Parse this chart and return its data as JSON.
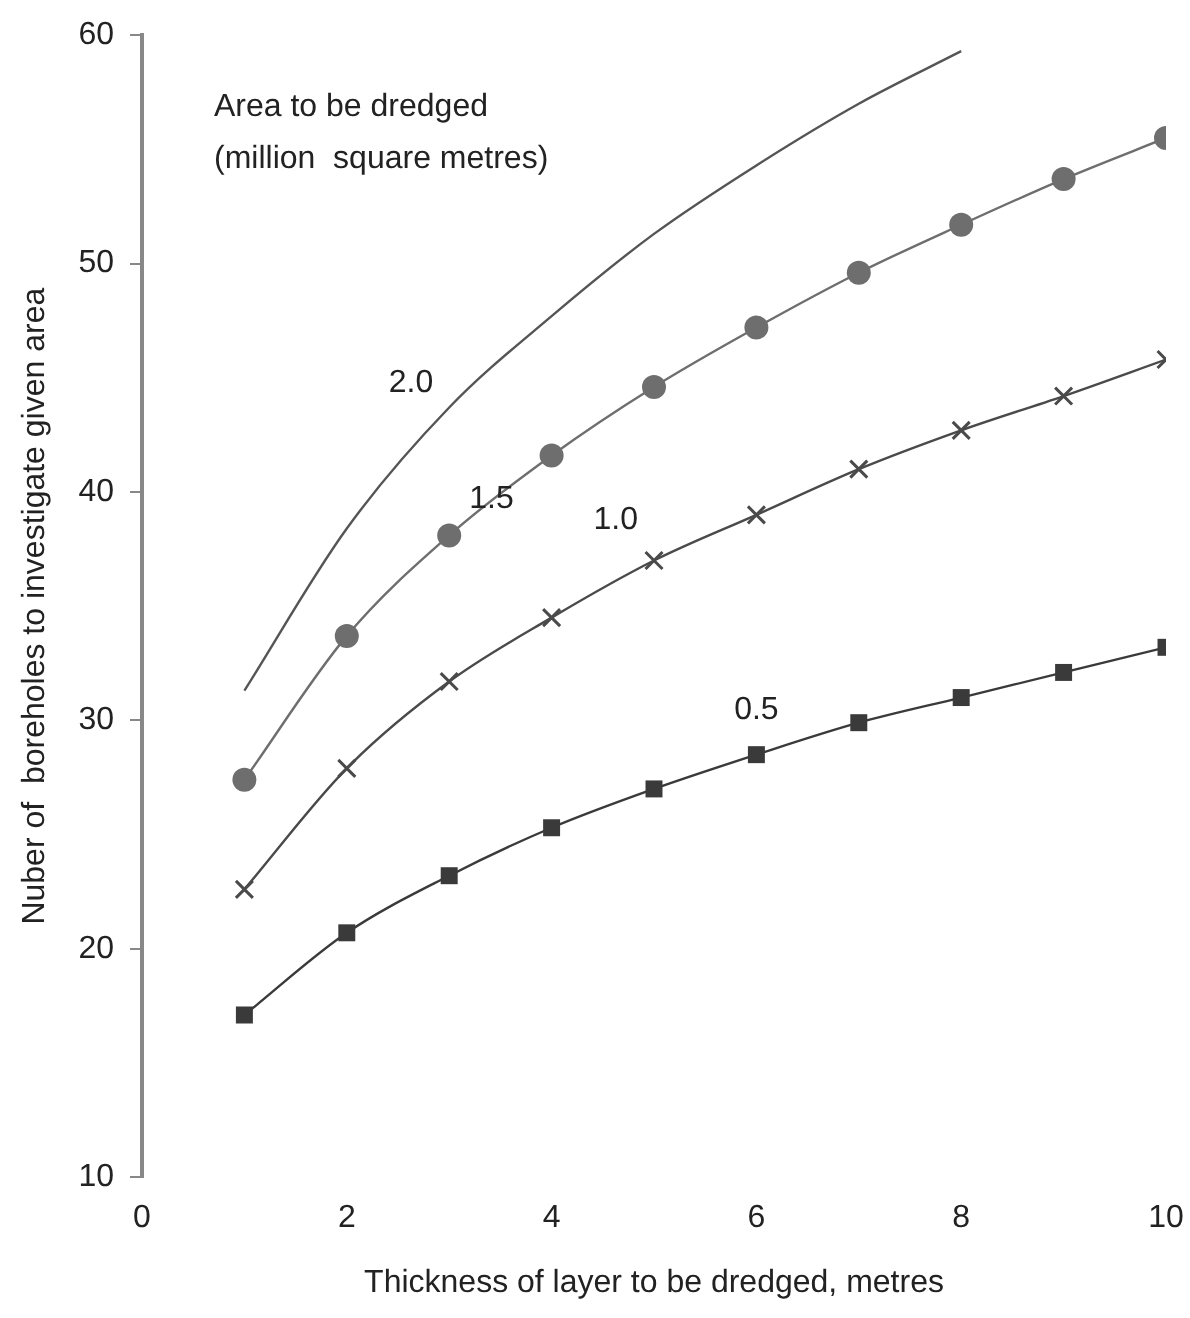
{
  "chart_data": {
    "type": "line",
    "xlabel": "Thickness of layer to be dredged, metres",
    "ylabel": "Nuber of  boreholes to investigate given area",
    "legend_title": "Area to be dredged\n(million  square metres)",
    "x": [
      1,
      2,
      3,
      4,
      5,
      6,
      7,
      8,
      9,
      10
    ],
    "xlim": [
      0,
      10
    ],
    "xticks": [
      0,
      2,
      4,
      6,
      8,
      10
    ],
    "ylim": [
      10,
      60
    ],
    "yticks": [
      10,
      20,
      30,
      40,
      50,
      60
    ],
    "grid": false,
    "legend": false,
    "series": [
      {
        "name": "0.5",
        "color": "#3a3a3a",
        "marker": "square",
        "values": [
          17.1,
          20.7,
          23.2,
          25.3,
          27.0,
          28.5,
          29.9,
          31.0,
          32.1,
          33.2
        ]
      },
      {
        "name": "1.0",
        "color": "#4a4a4a",
        "marker": "cross",
        "values": [
          22.6,
          27.9,
          31.7,
          34.5,
          37.0,
          39.0,
          41.0,
          42.7,
          44.2,
          45.8
        ]
      },
      {
        "name": "1.5",
        "color": "#6e6e6e",
        "marker": "circle",
        "values": [
          27.4,
          33.7,
          38.1,
          41.6,
          44.6,
          47.2,
          49.6,
          51.7,
          53.7,
          55.5
        ]
      },
      {
        "name": "2.0",
        "color": "#555555",
        "marker": "none",
        "values": [
          31.3,
          38.4,
          43.7,
          47.7,
          51.3,
          54.3,
          57.0,
          59.3,
          null,
          null
        ]
      }
    ]
  }
}
